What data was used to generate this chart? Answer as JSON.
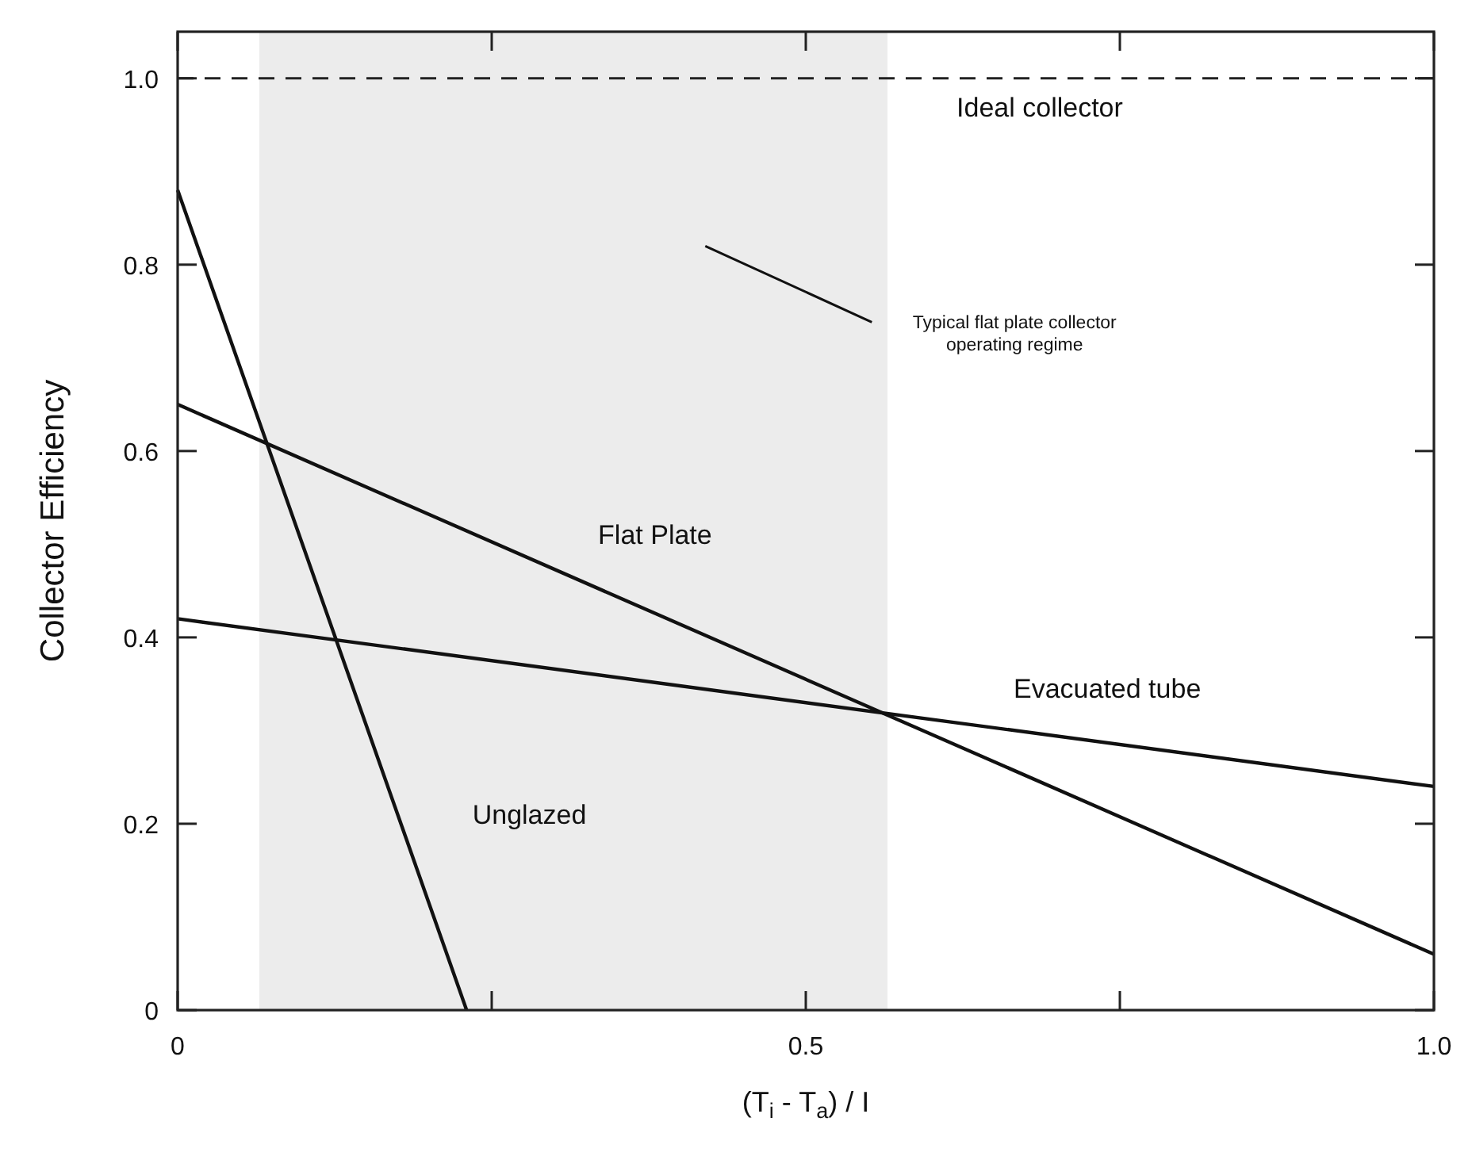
{
  "chart_data": {
    "type": "line",
    "xlabel": "(T$_{i}$ - T$_{a}$) / I",
    "annotations": [
      "Typical flat plate collector operating regime"
    ],
    "ylabel": "Collector Efficiency",
    "xlim": [
      0,
      1.0
    ],
    "ylim": [
      0,
      1.05
    ],
    "xticks": [
      0,
      {
        "value": 0.25,
        "label": null
      },
      {
        "value": 0.5,
        "label": "0.5"
      },
      {
        "value": 0.75,
        "label": null
      },
      {
        "value": 1.0,
        "label": "1.0"
      }
    ],
    "yticks": [
      0,
      0.2,
      0.4,
      0.6,
      0.8,
      {
        "value": 1.0,
        "label": "1.0"
      }
    ],
    "grid": false,
    "marker": "none",
    "line_style": "solid",
    "series": [
      {
        "name": "Unglazed",
        "color": "#111111",
        "x": [
          0,
          0.23
        ],
        "values": [
          0.88,
          0
        ]
      },
      {
        "name": "Flat Plate",
        "color": "#111111",
        "x": [
          0,
          1.0
        ],
        "values": [
          0.65,
          0.06
        ]
      },
      {
        "name": "Evacuated tube",
        "color": "#111111",
        "x": [
          0,
          1.0
        ],
        "values": [
          0.42,
          0.24
        ]
      }
    ],
    "ref_lines": [
      {
        "axis": "y",
        "value": 1.0,
        "label": "Ideal collector",
        "color": "#222222",
        "line_style": "dashed"
      }
    ],
    "bands": [
      {
        "axis": "x",
        "from": 0.065,
        "to": 0.565,
        "color": "#ececec"
      }
    ]
  }
}
